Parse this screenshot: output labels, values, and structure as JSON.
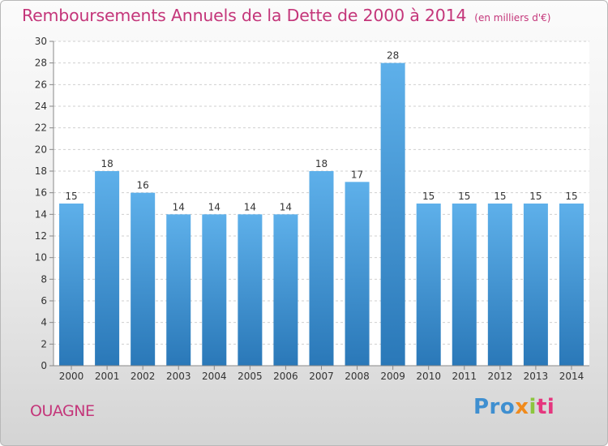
{
  "header": {
    "title": "Remboursements Annuels de la Dette de 2000 à 2014",
    "subtitle": "(en milliers d'€)"
  },
  "footer": {
    "commune": "OUAGNE",
    "logo": {
      "p1": "Pro",
      "p2": "x",
      "p3": "i",
      "p4": "ti"
    }
  },
  "colors": {
    "title": "#c4367a",
    "bar_top": "#5eb0ea",
    "bar_bottom": "#2a78b8"
  },
  "chart_data": {
    "type": "bar",
    "title": "Remboursements Annuels de la Dette de 2000 à 2014",
    "subtitle": "(en milliers d'€)",
    "categories": [
      "2000",
      "2001",
      "2002",
      "2003",
      "2004",
      "2005",
      "2006",
      "2007",
      "2008",
      "2009",
      "2010",
      "2011",
      "2012",
      "2013",
      "2014"
    ],
    "values": [
      15,
      18,
      16,
      14,
      14,
      14,
      14,
      18,
      17,
      28,
      15,
      15,
      15,
      15,
      15
    ],
    "ylim": [
      0,
      30
    ],
    "yticks": [
      0,
      2,
      4,
      6,
      8,
      10,
      12,
      14,
      16,
      18,
      20,
      22,
      24,
      26,
      28,
      30
    ],
    "grid": true,
    "legend": "none"
  }
}
